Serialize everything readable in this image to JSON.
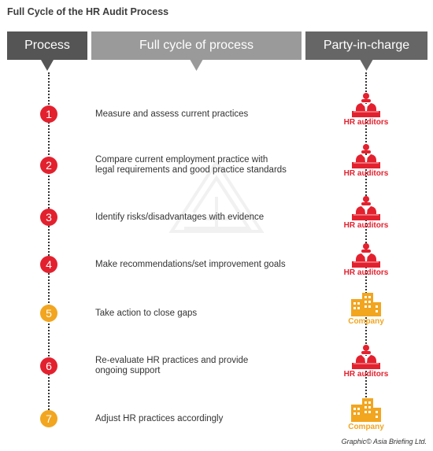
{
  "title": "Full Cycle of the HR Audit Process",
  "headers": {
    "process": "Process",
    "cycle": "Full cycle of process",
    "party": "Party-in-charge"
  },
  "steps": [
    {
      "number": "1",
      "text": "Measure and assess current practices",
      "party": "HR auditors",
      "party_icon": "hr-auditor-icon",
      "color": "#e3212e"
    },
    {
      "number": "2",
      "text": "Compare current employment practice with\nlegal requirements and good practice standards",
      "party": "HR auditors",
      "party_icon": "hr-auditor-icon",
      "color": "#e3212e"
    },
    {
      "number": "3",
      "text": "Identify risks/disadvantages with evidence",
      "party": "HR auditors",
      "party_icon": "hr-auditor-icon",
      "color": "#e3212e"
    },
    {
      "number": "4",
      "text": "Make recommendations/set improvement goals",
      "party": "HR auditors",
      "party_icon": "hr-auditor-icon",
      "color": "#e3212e"
    },
    {
      "number": "5",
      "text": "Take action to close gaps",
      "party": "Company",
      "party_icon": "company-building-icon",
      "color": "#f2a51f"
    },
    {
      "number": "6",
      "text": "Re-evaluate HR practices and provide\nongoing support",
      "party": "HR auditors",
      "party_icon": "hr-auditor-icon",
      "color": "#e3212e"
    },
    {
      "number": "7",
      "text": "Adjust HR practices accordingly",
      "party": "Company",
      "party_icon": "company-building-icon",
      "color": "#f2a51f"
    }
  ],
  "watermark_icon": "logo-watermark-icon",
  "credit": "Graphic© Asia Briefing Ltd."
}
